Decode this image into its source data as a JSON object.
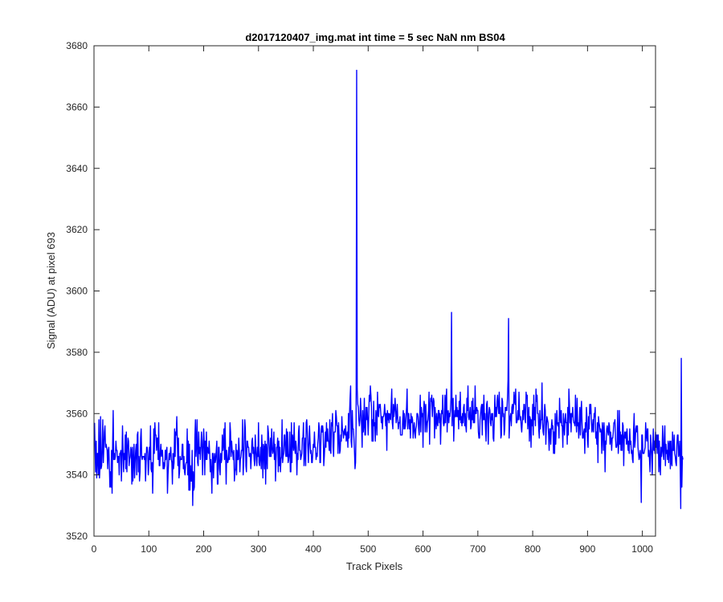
{
  "chart_data": {
    "type": "line",
    "title": "d2017120407_img.mat int time = 5 sec  NaN nm BS04",
    "xlabel": "Track Pixels",
    "ylabel": "Signal (ADU) at pixel 693",
    "xlim": [
      0,
      1024
    ],
    "ylim": [
      3520,
      3680
    ],
    "xticks": [
      0,
      100,
      200,
      300,
      400,
      500,
      600,
      700,
      800,
      900,
      1000
    ],
    "yticks": [
      3520,
      3540,
      3560,
      3580,
      3600,
      3620,
      3640,
      3660,
      3680
    ],
    "grid": false,
    "line_color": "#0000ff",
    "axis_color": "#262626",
    "series": [
      {
        "x_start": 1,
        "x_step": 1,
        "values": [
          3557,
          3548,
          3541,
          3551,
          3539,
          3547,
          3547,
          3540,
          3558,
          3539,
          3543,
          3559,
          3542,
          3543,
          3549,
          3558,
          3544,
          3549,
          3554,
          3556,
          3549,
          3550,
          3549,
          3548,
          3542,
          3548,
          3549,
          3543,
          3536,
          3541,
          3536,
          3548,
          3534,
          3550,
          3561,
          3545,
          3547,
          3545,
          3546,
          3551,
          3548,
          3548,
          3544,
          3546,
          3546,
          3540,
          3547,
          3547,
          3548,
          3538,
          3545,
          3556,
          3548,
          3541,
          3547,
          3545,
          3553,
          3542,
          3554,
          3541,
          3548,
          3552,
          3551,
          3543,
          3545,
          3546,
          3549,
          3548,
          3537,
          3549,
          3538,
          3545,
          3550,
          3539,
          3544,
          3548,
          3550,
          3540,
          3553,
          3554,
          3541,
          3546,
          3538,
          3541,
          3552,
          3555,
          3546,
          3545,
          3546,
          3546,
          3546,
          3545,
          3547,
          3538,
          3544,
          3549,
          3549,
          3547,
          3540,
          3543,
          3549,
          3545,
          3556,
          3542,
          3541,
          3544,
          3534,
          3543,
          3555,
          3547,
          3557,
          3553,
          3553,
          3548,
          3552,
          3552,
          3545,
          3557,
          3543,
          3543,
          3548,
          3550,
          3546,
          3548,
          3548,
          3542,
          3544,
          3542,
          3543,
          3548,
          3545,
          3548,
          3549,
          3534,
          3540,
          3544,
          3547,
          3545,
          3547,
          3549,
          3545,
          3544,
          3537,
          3547,
          3542,
          3544,
          3555,
          3546,
          3554,
          3553,
          3559,
          3551,
          3543,
          3552,
          3539,
          3541,
          3546,
          3545,
          3545,
          3545,
          3550,
          3550,
          3542,
          3546,
          3541,
          3540,
          3543,
          3544,
          3544,
          3555,
          3540,
          3551,
          3535,
          3550,
          3535,
          3543,
          3538,
          3538,
          3548,
          3530,
          3541,
          3535,
          3536,
          3552,
          3558,
          3546,
          3550,
          3558,
          3544,
          3543,
          3554,
          3547,
          3549,
          3545,
          3549,
          3554,
          3551,
          3540,
          3548,
          3555,
          3551,
          3540,
          3551,
          3545,
          3554,
          3545,
          3549,
          3548,
          3547,
          3551,
          3547,
          3541,
          3545,
          3541,
          3534,
          3547,
          3547,
          3539,
          3545,
          3547,
          3544,
          3545,
          3548,
          3551,
          3537,
          3537,
          3549,
          3549,
          3542,
          3540,
          3547,
          3544,
          3545,
          3553,
          3548,
          3550,
          3555,
          3545,
          3557,
          3547,
          3537,
          3548,
          3545,
          3544,
          3545,
          3549,
          3545,
          3557,
          3554,
          3546,
          3551,
          3548,
          3547,
          3545,
          3548,
          3538,
          3541,
          3542,
          3550,
          3540,
          3548,
          3545,
          3545,
          3552,
          3548,
          3541,
          3545,
          3546,
          3548,
          3548,
          3558,
          3540,
          3544,
          3551,
          3558,
          3555,
          3543,
          3541,
          3551,
          3551,
          3549,
          3549,
          3546,
          3546,
          3547,
          3542,
          3546,
          3551,
          3552,
          3547,
          3549,
          3545,
          3543,
          3553,
          3549,
          3545,
          3543,
          3549,
          3546,
          3557,
          3544,
          3543,
          3546,
          3549,
          3542,
          3553,
          3547,
          3539,
          3550,
          3549,
          3542,
          3551,
          3537,
          3550,
          3547,
          3542,
          3556,
          3554,
          3551,
          3546,
          3546,
          3552,
          3546,
          3555,
          3549,
          3547,
          3548,
          3554,
          3545,
          3550,
          3538,
          3545,
          3549,
          3549,
          3552,
          3541,
          3551,
          3543,
          3549,
          3541,
          3545,
          3546,
          3558,
          3544,
          3546,
          3547,
          3553,
          3553,
          3548,
          3546,
          3555,
          3546,
          3554,
          3544,
          3545,
          3547,
          3554,
          3541,
          3541,
          3557,
          3544,
          3553,
          3551,
          3548,
          3557,
          3549,
          3547,
          3551,
          3549,
          3540,
          3547,
          3545,
          3554,
          3556,
          3548,
          3548,
          3545,
          3546,
          3547,
          3552,
          3552,
          3557,
          3543,
          3547,
          3552,
          3543,
          3557,
          3558,
          3554,
          3549,
          3544,
          3550,
          3556,
          3551,
          3547,
          3548,
          3544,
          3544,
          3547,
          3550,
          3549,
          3554,
          3549,
          3549,
          3545,
          3547,
          3546,
          3550,
          3552,
          3557,
          3555,
          3544,
          3544,
          3553,
          3556,
          3554,
          3556,
          3554,
          3543,
          3546,
          3550,
          3554,
          3549,
          3557,
          3551,
          3555,
          3551,
          3551,
          3548,
          3558,
          3548,
          3547,
          3557,
          3556,
          3560,
          3549,
          3546,
          3554,
          3554,
          3554,
          3561,
          3559,
          3556,
          3556,
          3547,
          3557,
          3553,
          3547,
          3548,
          3553,
          3551,
          3559,
          3555,
          3554,
          3552,
          3554,
          3555,
          3553,
          3556,
          3551,
          3552,
          3554,
          3549,
          3560,
          3552,
          3560,
          3565,
          3569,
          3551,
          3549,
          3561,
          3555,
          3555,
          3552,
          3548,
          3542,
          3544,
          3556,
          3672,
          3568,
          3563,
          3562,
          3558,
          3556,
          3558,
          3565,
          3561,
          3556,
          3549,
          3561,
          3554,
          3556,
          3565,
          3553,
          3553,
          3562,
          3558,
          3562,
          3558,
          3553,
          3559,
          3566,
          3564,
          3569,
          3566,
          3562,
          3551,
          3558,
          3551,
          3564,
          3556,
          3557,
          3551,
          3561,
          3559,
          3553,
          3567,
          3560,
          3559,
          3563,
          3562,
          3563,
          3560,
          3557,
          3559,
          3555,
          3559,
          3559,
          3560,
          3563,
          3560,
          3556,
          3560,
          3548,
          3561,
          3558,
          3560,
          3557,
          3560,
          3559,
          3558,
          3563,
          3568,
          3557,
          3555,
          3563,
          3559,
          3561,
          3565,
          3562,
          3557,
          3559,
          3563,
          3558,
          3555,
          3557,
          3557,
          3559,
          3553,
          3553,
          3553,
          3553,
          3558,
          3561,
          3555,
          3560,
          3555,
          3556,
          3559,
          3562,
          3568,
          3555,
          3560,
          3560,
          3555,
          3558,
          3552,
          3560,
          3557,
          3559,
          3558,
          3552,
          3555,
          3557,
          3554,
          3552,
          3555,
          3556,
          3560,
          3560,
          3559,
          3555,
          3553,
          3559,
          3566,
          3554,
          3562,
          3559,
          3560,
          3549,
          3561,
          3564,
          3562,
          3554,
          3563,
          3558,
          3554,
          3557,
          3558,
          3561,
          3567,
          3550,
          3561,
          3565,
          3564,
          3566,
          3559,
          3563,
          3565,
          3564,
          3552,
          3562,
          3558,
          3555,
          3560,
          3557,
          3556,
          3561,
          3561,
          3557,
          3560,
          3550,
          3557,
          3561,
          3560,
          3566,
          3557,
          3556,
          3557,
          3566,
          3557,
          3564,
          3568,
          3554,
          3560,
          3561,
          3557,
          3560,
          3559,
          3561,
          3565,
          3593,
          3556,
          3563,
          3565,
          3551,
          3558,
          3561,
          3559,
          3566,
          3559,
          3562,
          3559,
          3561,
          3555,
          3564,
          3558,
          3567,
          3557,
          3559,
          3556,
          3560,
          3557,
          3562,
          3563,
          3556,
          3560,
          3556,
          3554,
          3565,
          3561,
          3569,
          3559,
          3558,
          3560,
          3562,
          3555,
          3556,
          3564,
          3558,
          3565,
          3557,
          3561,
          3557,
          3569,
          3560,
          3560,
          3562,
          3561,
          3561,
          3554,
          3552,
          3552,
          3558,
          3560,
          3562,
          3563,
          3553,
          3563,
          3558,
          3566,
          3558,
          3560,
          3555,
          3551,
          3563,
          3564,
          3557,
          3550,
          3560,
          3562,
          3561,
          3557,
          3556,
          3560,
          3558,
          3560,
          3552,
          3551,
          3558,
          3566,
          3559,
          3562,
          3559,
          3564,
          3566,
          3562,
          3560,
          3567,
          3560,
          3562,
          3552,
          3553,
          3565,
          3564,
          3559,
          3560,
          3553,
          3555,
          3562,
          3561,
          3562,
          3561,
          3565,
          3571,
          3591,
          3552,
          3557,
          3559,
          3560,
          3556,
          3562,
          3563,
          3560,
          3562,
          3567,
          3564,
          3563,
          3568,
          3557,
          3557,
          3558,
          3561,
          3558,
          3567,
          3560,
          3558,
          3559,
          3556,
          3554,
          3557,
          3561,
          3558,
          3563,
          3563,
          3558,
          3557,
          3567,
          3565,
          3566,
          3555,
          3558,
          3562,
          3551,
          3559,
          3558,
          3549,
          3558,
          3556,
          3563,
          3553,
          3566,
          3558,
          3562,
          3556,
          3568,
          3564,
          3566,
          3560,
          3560,
          3555,
          3552,
          3561,
          3555,
          3558,
          3558,
          3570,
          3557,
          3554,
          3553,
          3559,
          3563,
          3561,
          3550,
          3556,
          3559,
          3558,
          3557,
          3553,
          3548,
          3555,
          3555,
          3550,
          3555,
          3558,
          3555,
          3556,
          3547,
          3554,
          3547,
          3560,
          3550,
          3556,
          3561,
          3557,
          3556,
          3557,
          3552,
          3565,
          3559,
          3557,
          3561,
          3556,
          3556,
          3549,
          3560,
          3557,
          3553,
          3558,
          3560,
          3557,
          3557,
          3550,
          3562,
          3553,
          3568,
          3563,
          3557,
          3560,
          3554,
          3560,
          3559,
          3562,
          3558,
          3557,
          3557,
          3556,
          3566,
          3558,
          3554,
          3565,
          3556,
          3557,
          3552,
          3557,
          3562,
          3553,
          3560,
          3564,
          3557,
          3552,
          3552,
          3554,
          3555,
          3547,
          3557,
          3554,
          3562,
          3559,
          3551,
          3549,
          3559,
          3555,
          3563,
          3560,
          3563,
          3558,
          3554,
          3555,
          3558,
          3554,
          3560,
          3559,
          3562,
          3552,
          3554,
          3550,
          3557,
          3544,
          3559,
          3557,
          3556,
          3554,
          3555,
          3554,
          3547,
          3557,
          3555,
          3548,
          3557,
          3553,
          3541,
          3551,
          3550,
          3555,
          3556,
          3554,
          3553,
          3557,
          3556,
          3550,
          3554,
          3552,
          3548,
          3552,
          3552,
          3554,
          3557,
          3557,
          3558,
          3552,
          3549,
          3549,
          3550,
          3561,
          3547,
          3550,
          3561,
          3550,
          3554,
          3548,
          3553,
          3548,
          3557,
          3556,
          3543,
          3552,
          3554,
          3552,
          3554,
          3550,
          3555,
          3551,
          3548,
          3551,
          3547,
          3555,
          3550,
          3551,
          3547,
          3548,
          3545,
          3544,
          3555,
          3560,
          3549,
          3551,
          3555,
          3556,
          3554,
          3556,
          3549,
          3547,
          3545,
          3546,
          3548,
          3545,
          3531,
          3553,
          3553,
          3547,
          3547,
          3547,
          3548,
          3549,
          3557,
          3553,
          3551,
          3555,
          3555,
          3546,
          3548,
          3545,
          3541,
          3553,
          3550,
          3546,
          3540,
          3550,
          3555,
          3548,
          3551,
          3547,
          3554,
          3549,
          3553,
          3547,
          3553,
          3553,
          3541,
          3551,
          3544,
          3540,
          3549,
          3546,
          3548,
          3556,
          3547,
          3545,
          3552,
          3556,
          3543,
          3550,
          3547,
          3548,
          3545,
          3551,
          3544,
          3550,
          3551,
          3542,
          3551,
          3544,
          3543,
          3554,
          3548,
          3548,
          3553,
          3547,
          3546,
          3544,
          3543,
          3550,
          3553,
          3553,
          3546,
          3547,
          3551,
          3543,
          3529,
          3578,
          3536,
          3546,
          3545
        ]
      }
    ]
  }
}
